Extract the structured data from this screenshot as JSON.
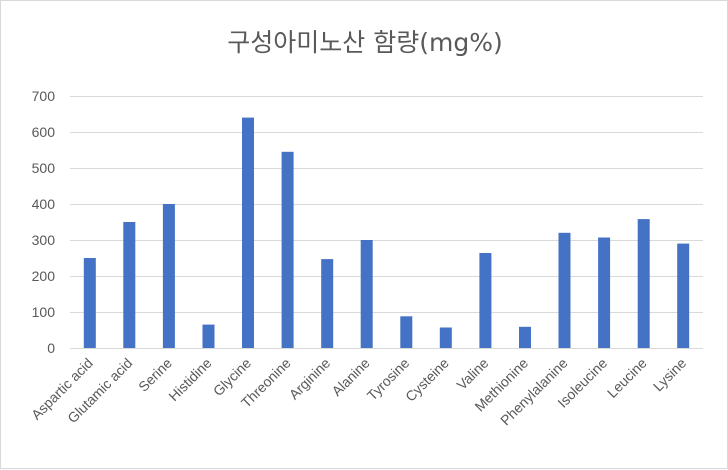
{
  "chart_data": {
    "type": "bar",
    "title": "구성아미노산 함량(mg%)",
    "xlabel": "",
    "ylabel": "",
    "ylim": [
      0,
      700
    ],
    "yticks": [
      0,
      100,
      200,
      300,
      400,
      500,
      600,
      700
    ],
    "grid": true,
    "legend": "none",
    "bar_color": "#4472c4",
    "categories": [
      "Aspartic acid",
      "Glutamic acid",
      "Serine",
      "Histidine",
      "Glycine",
      "Threonine",
      "Arginine",
      "Alanine",
      "Tyrosine",
      "Cysteine",
      "Valine",
      "Methionine",
      "Phenylalanine",
      "Isoleucine",
      "Leucine",
      "Lysine"
    ],
    "values": [
      250,
      350,
      400,
      65,
      640,
      545,
      247,
      300,
      88,
      57,
      264,
      59,
      320,
      307,
      358,
      290
    ]
  }
}
